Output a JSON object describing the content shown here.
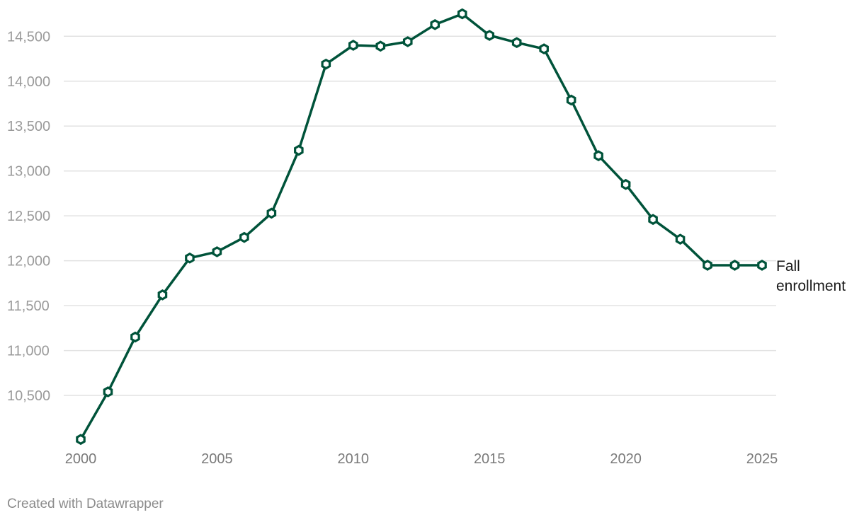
{
  "chart_data": {
    "type": "line",
    "x": [
      2000,
      2001,
      2002,
      2003,
      2004,
      2005,
      2006,
      2007,
      2008,
      2009,
      2010,
      2011,
      2012,
      2013,
      2014,
      2015,
      2016,
      2017,
      2018,
      2019,
      2020,
      2021,
      2022,
      2023,
      2024,
      2025
    ],
    "series": [
      {
        "name": "Fall enrollment",
        "values": [
          10010,
          10540,
          11150,
          11620,
          12030,
          12100,
          12260,
          12530,
          13230,
          14190,
          14400,
          14390,
          14440,
          14630,
          14750,
          14510,
          14430,
          14360,
          13790,
          13170,
          12850,
          12460,
          12240,
          11950,
          11950,
          11950
        ]
      }
    ],
    "yticks": [
      "10,500",
      "11,000",
      "11,500",
      "12,000",
      "12,500",
      "13,000",
      "13,500",
      "14,000",
      "14,500"
    ],
    "xticks": [
      "2000",
      "2005",
      "2010",
      "2015",
      "2020",
      "2025"
    ],
    "ylim": [
      10000,
      14800
    ],
    "xlim": [
      2000,
      2025
    ],
    "grid": "horizontal",
    "series_label_lines": [
      "Fall",
      "enrollment"
    ],
    "colors": {
      "line": "#00533a",
      "grid": "#e2e2e2",
      "marker_fill": "#ffffff"
    }
  },
  "credit": "Created with Datawrapper"
}
